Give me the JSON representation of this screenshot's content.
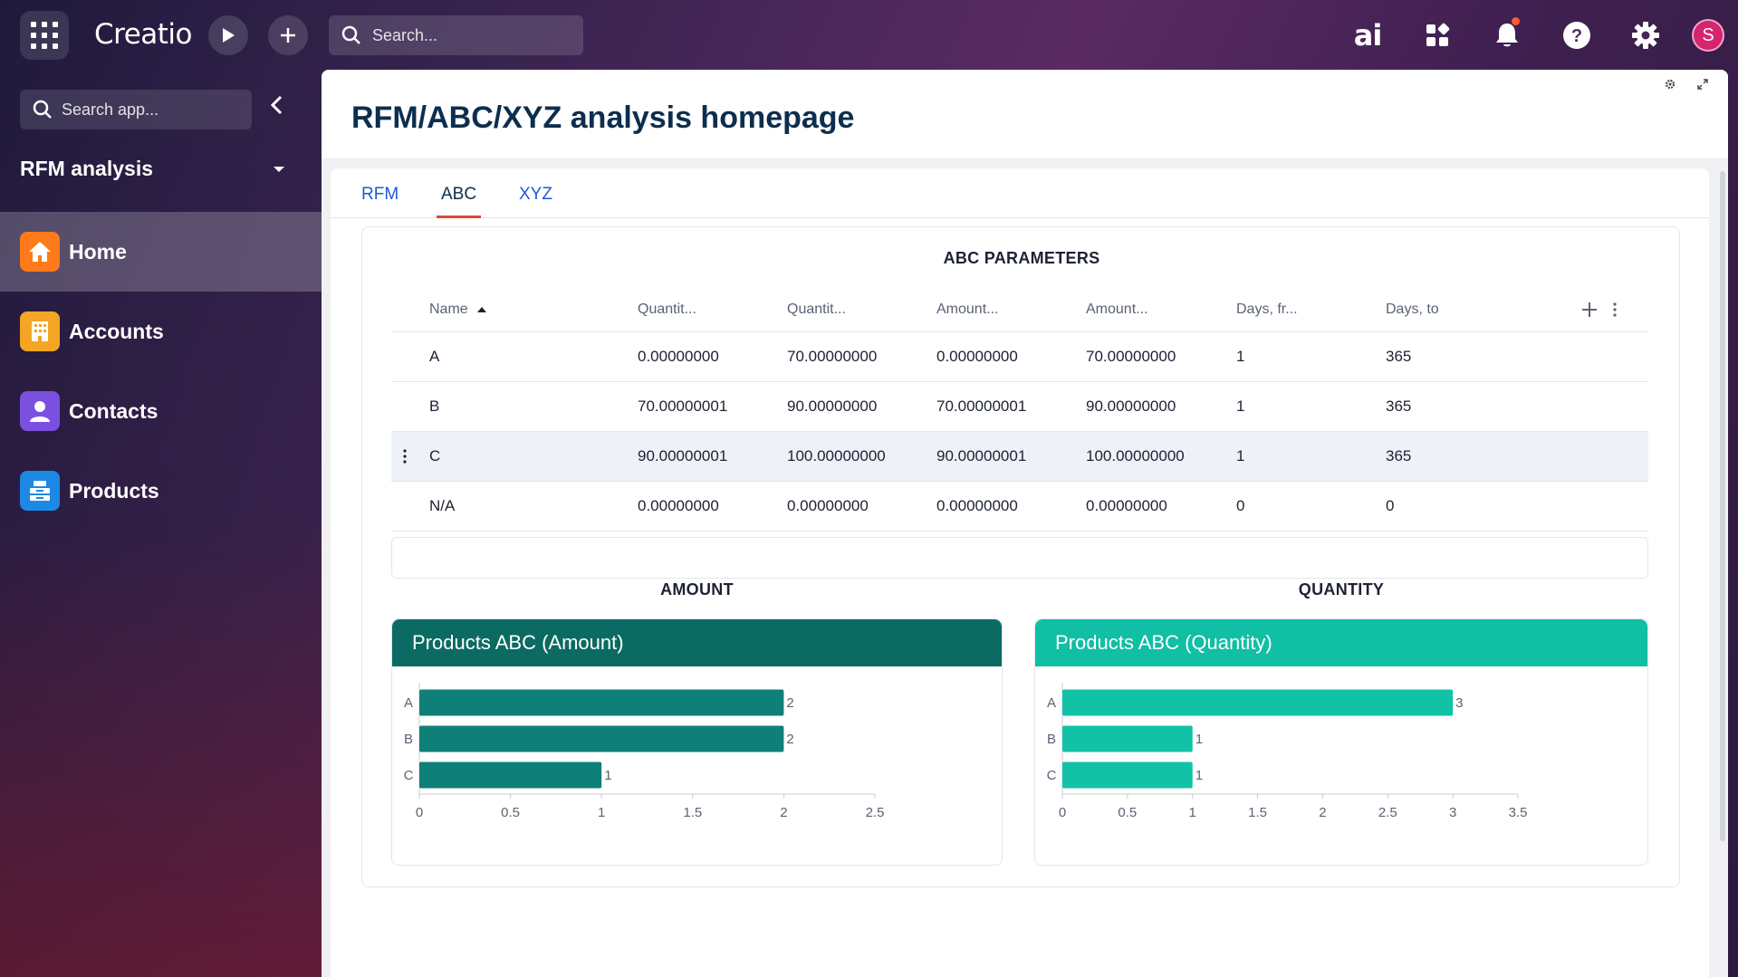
{
  "topbar": {
    "logo": "Creatio",
    "search_placeholder": "Search...",
    "ai_label": "ai",
    "avatar_initial": "S"
  },
  "sidebar": {
    "search_placeholder": "Search app...",
    "app_title": "RFM analysis",
    "items": [
      {
        "label": "Home",
        "icon": "home-icon",
        "color": "#ff7a1a"
      },
      {
        "label": "Accounts",
        "icon": "building-icon",
        "color": "#f5a524"
      },
      {
        "label": "Contacts",
        "icon": "person-icon",
        "color": "#7b4fe0"
      },
      {
        "label": "Products",
        "icon": "products-icon",
        "color": "#1e88e5"
      }
    ]
  },
  "page": {
    "title": "RFM/ABC/XYZ analysis homepage",
    "tabs": [
      "RFM",
      "ABC",
      "XYZ"
    ],
    "active_tab": "ABC"
  },
  "parameters": {
    "title": "ABC PARAMETERS",
    "columns": [
      "Name",
      "Quantit...",
      "Quantit...",
      "Amount...",
      "Amount...",
      "Days, fr...",
      "Days, to"
    ],
    "rows": [
      [
        "A",
        "0.00000000",
        "70.00000000",
        "0.00000000",
        "70.00000000",
        "1",
        "365"
      ],
      [
        "B",
        "70.00000001",
        "90.00000000",
        "70.00000001",
        "90.00000000",
        "1",
        "365"
      ],
      [
        "C",
        "90.00000001",
        "100.00000000",
        "90.00000001",
        "100.00000000",
        "1",
        "365"
      ],
      [
        "N/A",
        "0.00000000",
        "0.00000000",
        "0.00000000",
        "0.00000000",
        "0",
        "0"
      ]
    ]
  },
  "amount_section": {
    "title": "AMOUNT"
  },
  "quantity_section": {
    "title": "QUANTITY"
  },
  "chart_data": [
    {
      "type": "bar",
      "orientation": "horizontal",
      "title": "Products ABC (Amount)",
      "header_color": "#0b6b62",
      "bar_color": "#0f8077",
      "categories": [
        "A",
        "B",
        "C"
      ],
      "values": [
        2,
        2,
        1
      ],
      "xlim": [
        0,
        2.5
      ],
      "ticks": [
        "0",
        "0.5",
        "1",
        "1.5",
        "2",
        "2.5"
      ]
    },
    {
      "type": "bar",
      "orientation": "horizontal",
      "title": "Products ABC (Quantity)",
      "header_color": "#10bfa4",
      "bar_color": "#12c2a6",
      "categories": [
        "A",
        "B",
        "C"
      ],
      "values": [
        3,
        1,
        1
      ],
      "xlim": [
        0,
        3.5
      ],
      "ticks": [
        "0",
        "0.5",
        "1",
        "1.5",
        "2",
        "2.5",
        "3",
        "3.5"
      ]
    }
  ]
}
